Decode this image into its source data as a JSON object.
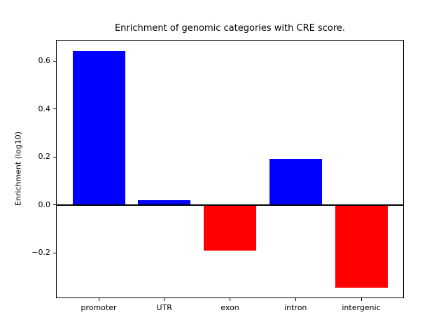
{
  "figure": {
    "background": "#ffffff"
  },
  "chart_data": {
    "type": "bar",
    "title": "Enrichment of genomic categories with CRE score.",
    "xlabel": "",
    "ylabel": "Enrichment (log10)",
    "categories": [
      "promoter",
      "UTR",
      "exon",
      "intron",
      "intergenic"
    ],
    "values": [
      0.641,
      0.018,
      -0.192,
      0.193,
      -0.345
    ],
    "bar_colors": [
      "#0000ff",
      "#0000ff",
      "#ff0000",
      "#0000ff",
      "#ff0000"
    ],
    "positive_color": "#0000ff",
    "negative_color": "#ff0000",
    "bar_width": 0.8,
    "xlim": [
      -0.64,
      4.64
    ],
    "ylim": [
      -0.387,
      0.686
    ],
    "yticks": [
      -0.2,
      0.0,
      0.2,
      0.4,
      0.6
    ],
    "ytick_labels": [
      "−0.2",
      "0.0",
      "0.2",
      "0.4",
      "0.6"
    ],
    "zero_line": true,
    "zero_line_width": 2,
    "grid": false,
    "legend": false,
    "axis_color": "#000000",
    "text_color": "#000000"
  }
}
